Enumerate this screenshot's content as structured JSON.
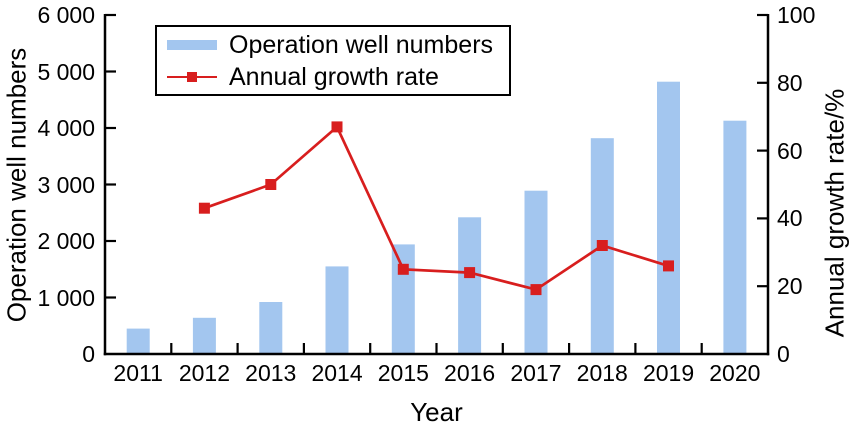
{
  "chart_data": {
    "type": "bar+line",
    "categories": [
      "2011",
      "2012",
      "2013",
      "2014",
      "2015",
      "2016",
      "2017",
      "2018",
      "2019",
      "2020"
    ],
    "series": [
      {
        "name": "Operation well numbers",
        "type": "bar",
        "axis": "left",
        "color": "#a3c6ef",
        "values": [
          450,
          640,
          920,
          1550,
          1940,
          2420,
          2890,
          3820,
          4820,
          4130
        ]
      },
      {
        "name": "Annual growth rate",
        "type": "line",
        "marker": "square",
        "axis": "right",
        "color": "#d81e1e",
        "values": [
          null,
          43,
          50,
          67,
          25,
          24,
          19,
          32,
          26,
          null
        ]
      }
    ],
    "x_axis": {
      "title": "Year"
    },
    "left_axis": {
      "title": "Operation well numbers",
      "min": 0,
      "max": 6000,
      "tick_step": 1000,
      "tick_labels": [
        "0",
        "1 000",
        "2 000",
        "3 000",
        "4 000",
        "5 000",
        "6 000"
      ]
    },
    "right_axis": {
      "title": "Annual growth rate/%",
      "min": 0,
      "max": 100,
      "tick_step": 20,
      "tick_labels": [
        "0",
        "20",
        "40",
        "60",
        "80",
        "100"
      ]
    },
    "legend": {
      "position": "top-left-inside"
    },
    "grid": "off",
    "axis_color": "#000000",
    "background": "#ffffff"
  }
}
